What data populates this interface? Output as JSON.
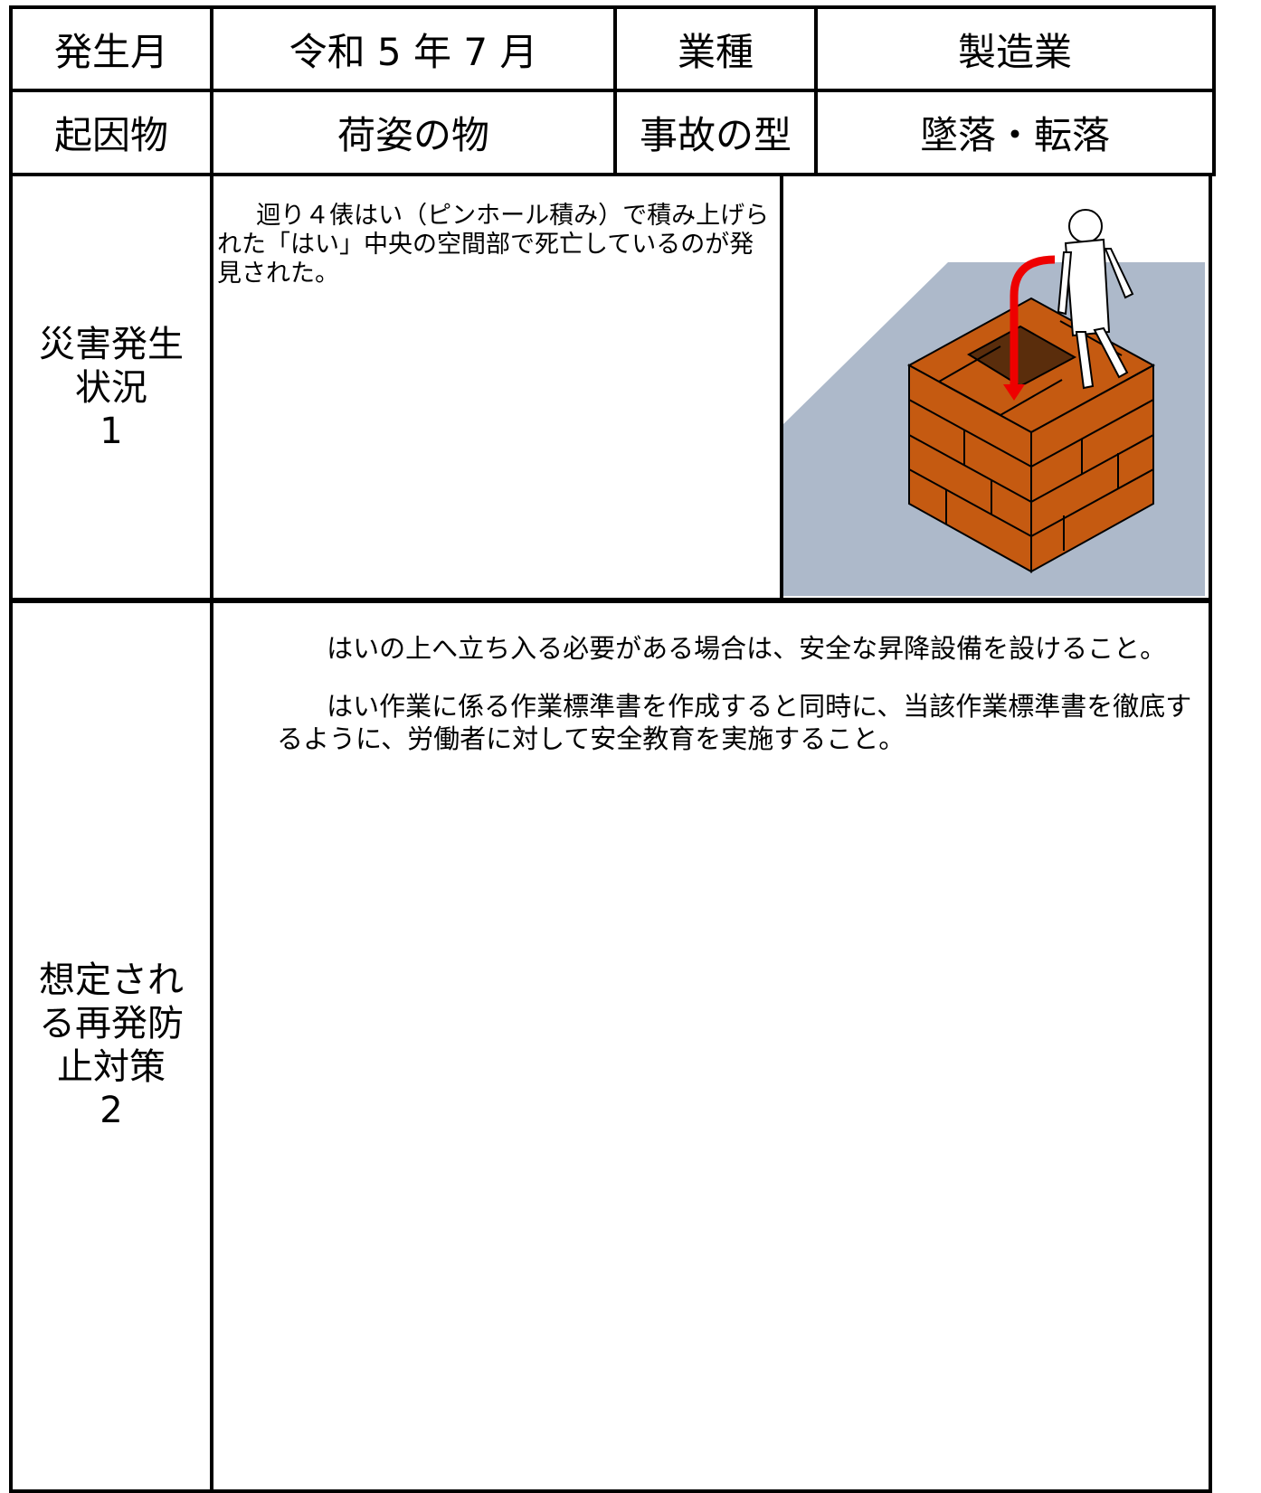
{
  "header": {
    "rows": [
      [
        "発生月",
        "令和 5 年 7 月",
        "業種",
        "製造業"
      ],
      [
        "起因物",
        "荷姿の物",
        "事故の型",
        "墜落・転落"
      ]
    ]
  },
  "situation": {
    "label": [
      "災害発生",
      "状況",
      "1"
    ],
    "text": "迴り４俵はい（ピンホール積み）で積み上げられた「はい」中央の空間部で死亡しているのが発見された。"
  },
  "measures": {
    "label": [
      "想定され",
      "る再発防",
      "止対策",
      "2"
    ],
    "paragraphs": [
      "はいの上へ立ち入る必要がある場合は、安全な昇降設備を設けること。",
      "はい作業に係る作業標準書を作成すると同時に、当該作業標準書を徹底するように、労働者に対して安全教育を実施すること。"
    ]
  }
}
